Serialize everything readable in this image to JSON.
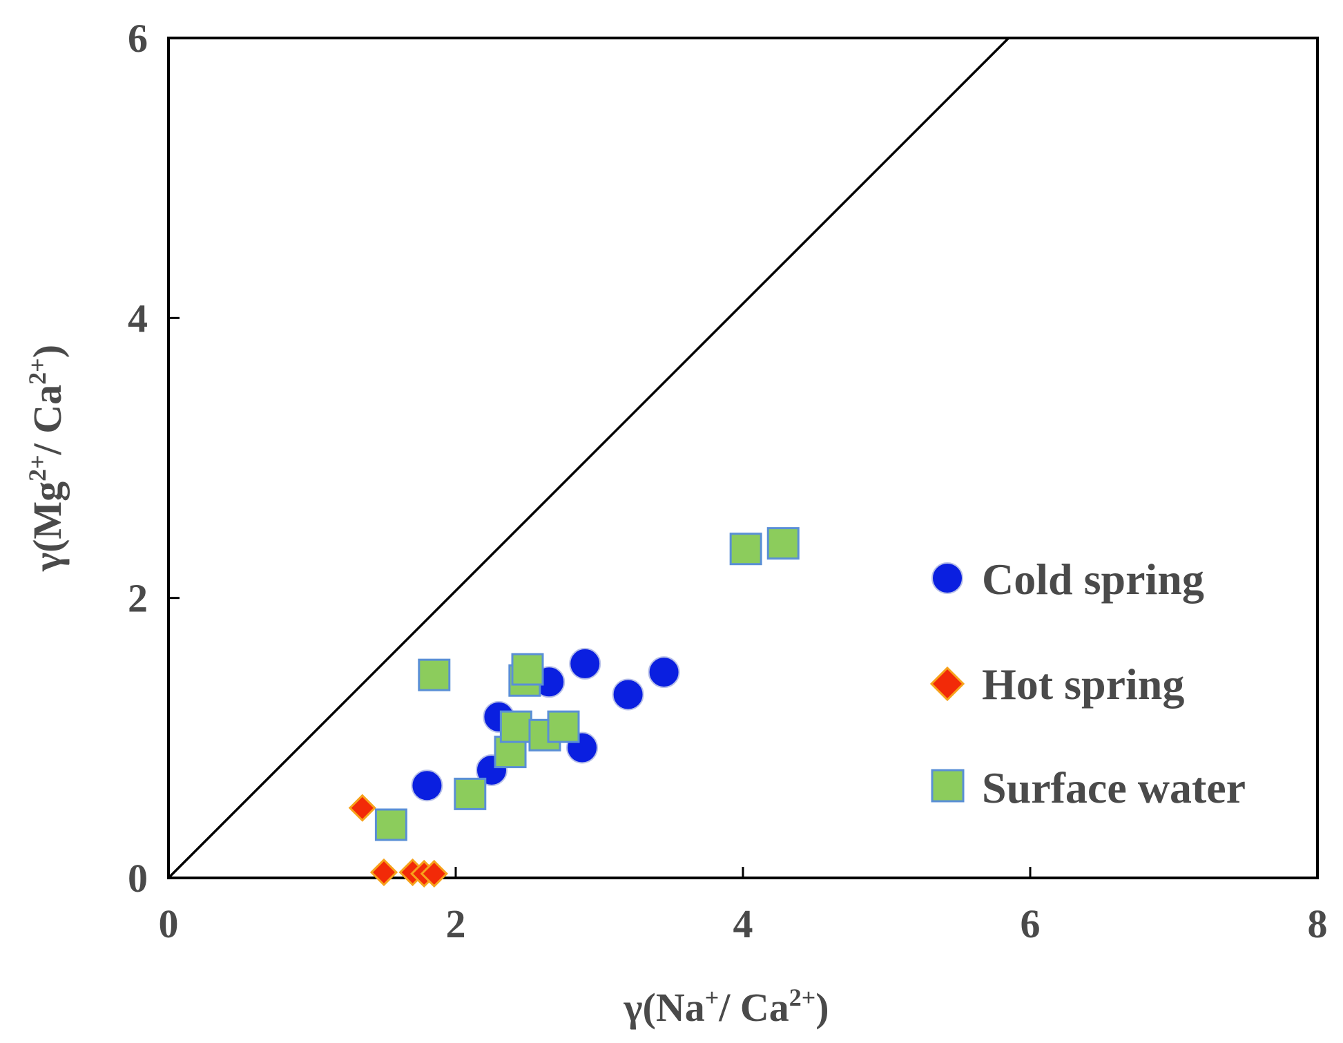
{
  "chart_data": {
    "type": "scatter",
    "xlabel": {
      "prefix": "γ(Na",
      "sup1": "+",
      "mid": "/ Ca",
      "sup2": "2+",
      "suffix": ")"
    },
    "ylabel": {
      "prefix": "γ(Mg",
      "sup1": "2+",
      "mid": "/ Ca",
      "sup2": "2+",
      "suffix": ")"
    },
    "xlim": [
      0,
      8
    ],
    "ylim": [
      0,
      6
    ],
    "xticks": [
      "0",
      "2",
      "4",
      "6",
      "8"
    ],
    "yticks": [
      "0",
      "2",
      "4",
      "6"
    ],
    "reference_line": {
      "x": [
        0,
        5.85
      ],
      "y": [
        0,
        6.0
      ]
    },
    "legend_position": "right",
    "colors": {
      "cold": "#0a1fe0",
      "hot": "#f22a08",
      "hot_edge": "#f7a21b",
      "surface": "#8ccc5c",
      "surface_edge": "#5a8fd6"
    },
    "series": [
      {
        "name": "Cold spring",
        "marker": "circle",
        "x": [
          1.8,
          2.25,
          2.3,
          2.65,
          2.9,
          2.88,
          3.2,
          3.45
        ],
        "y": [
          0.66,
          0.77,
          1.15,
          1.4,
          1.53,
          0.93,
          1.31,
          1.47
        ]
      },
      {
        "name": "Hot spring",
        "marker": "diamond",
        "x": [
          1.35,
          1.5,
          1.7,
          1.78,
          1.85
        ],
        "y": [
          0.5,
          0.04,
          0.04,
          0.03,
          0.03
        ]
      },
      {
        "name": "Surface water",
        "marker": "square",
        "x": [
          1.55,
          1.85,
          2.1,
          2.38,
          2.42,
          2.48,
          2.5,
          2.62,
          2.75,
          4.02,
          4.28
        ],
        "y": [
          0.38,
          1.45,
          0.6,
          0.9,
          1.08,
          1.41,
          1.49,
          1.02,
          1.08,
          2.35,
          2.39
        ]
      }
    ]
  }
}
